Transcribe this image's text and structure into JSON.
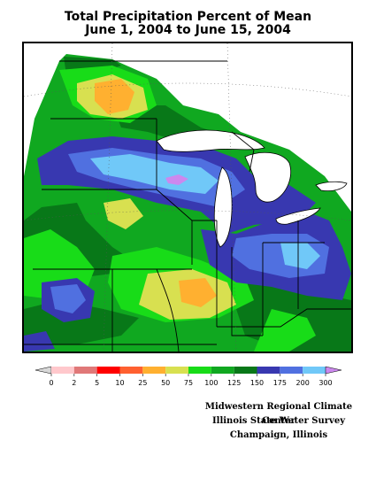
{
  "title": {
    "line1": "Total Precipitation Percent of Mean",
    "line2": "June 1, 2004 to June 15, 2004"
  },
  "legend": {
    "ticks": [
      "0",
      "2",
      "5",
      "10",
      "25",
      "50",
      "75",
      "100",
      "125",
      "150",
      "175",
      "200",
      "300"
    ],
    "under_color": "#d8d8d8",
    "over_color": "#cc88ee",
    "colors": [
      "#ffc8cc",
      "#e07878",
      "#ff0000",
      "#ff6030",
      "#ffb030",
      "#d8e050",
      "#18dc18",
      "#10a820",
      "#087818",
      "#3838b0",
      "#5070e0",
      "#70c8f8"
    ]
  },
  "map": {
    "region": "Midwest United States",
    "palette": {
      "c50": "#d8e050",
      "c25": "#ffb030",
      "c75": "#18dc18",
      "c100": "#10a820",
      "c125": "#087818",
      "c150": "#3838b0",
      "c175": "#5070e0",
      "c200": "#70c8f8",
      "c300": "#cc88ee",
      "water": "#ffffff"
    }
  },
  "credits": {
    "line1": "Midwestern Regional Climate Center",
    "line2": "Illinois State Water Survey",
    "line3": "Champaign, Illinois"
  }
}
